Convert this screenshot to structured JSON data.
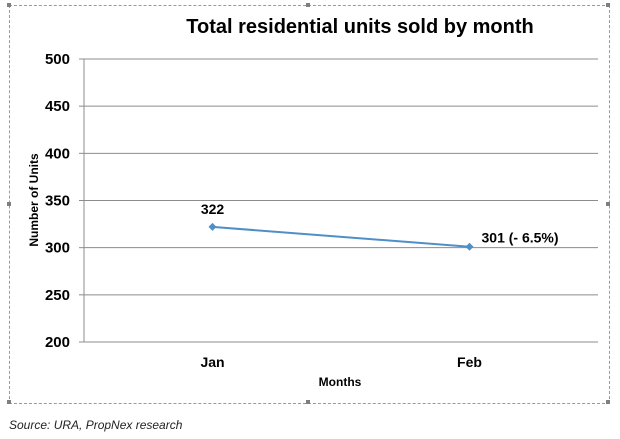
{
  "chart_data": {
    "type": "line",
    "title": "Total residential units sold by month",
    "xlabel": "Months",
    "ylabel": "Number of Units",
    "categories": [
      "Jan",
      "Feb"
    ],
    "series": [
      {
        "values": [
          322,
          301
        ],
        "data_labels": [
          "322",
          "301 (- 6.5%)"
        ]
      }
    ],
    "ylim": [
      200,
      500
    ],
    "yticks": [
      200,
      250,
      300,
      350,
      400,
      450,
      500
    ],
    "grid": true,
    "legend": "none",
    "colors": {
      "line": "#4f8fc7",
      "grid": "#8c8c8c"
    }
  },
  "source": "Source: URA, PropNex research"
}
